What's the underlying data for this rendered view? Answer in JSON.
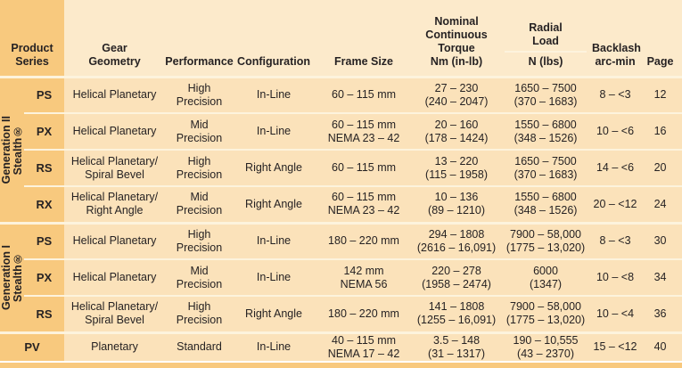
{
  "table": {
    "headers": {
      "product_series": "Product\nSeries",
      "gear_geometry": "Gear\nGeometry",
      "performance": "Performance",
      "configuration": "Configuration",
      "frame_size": "Frame Size",
      "torque": "Nominal\nContinuous\nTorque\nNm (in-lb)",
      "radial_load_title": "Radial\nLoad",
      "radial_load_unit": "N (lbs)",
      "backlash": "Backlash\narc-min",
      "page": "Page"
    },
    "groups": [
      {
        "label": "Generation II\nStealth®"
      },
      {
        "label": "Generation I\nStealth®"
      }
    ],
    "rows": [
      {
        "series": "PS",
        "gear_geometry": "Helical Planetary",
        "performance": "High\nPrecision",
        "configuration": "In-Line",
        "frame_size": "60 – 115 mm",
        "torque": "27 – 230\n(240 – 2047)",
        "radial_load": "1650 – 7500\n(370 – 1683)",
        "backlash": "8 – <3",
        "page": "12"
      },
      {
        "series": "PX",
        "gear_geometry": "Helical Planetary",
        "performance": "Mid\nPrecision",
        "configuration": "In-Line",
        "frame_size": "60 – 115 mm\nNEMA 23 – 42",
        "torque": "20 – 160\n(178 – 1424)",
        "radial_load": "1550 – 6800\n(348 – 1526)",
        "backlash": "10 – <6",
        "page": "16"
      },
      {
        "series": "RS",
        "gear_geometry": "Helical Planetary/\nSpiral Bevel",
        "performance": "High\nPrecision",
        "configuration": "Right Angle",
        "frame_size": "60 – 115 mm",
        "torque": "13 – 220\n(115 – 1958)",
        "radial_load": "1650 – 7500\n(370 – 1683)",
        "backlash": "14 – <6",
        "page": "20"
      },
      {
        "series": "RX",
        "gear_geometry": "Helical Planetary/\nRight Angle",
        "performance": "Mid\nPrecision",
        "configuration": "Right Angle",
        "frame_size": "60 – 115 mm\nNEMA 23 – 42",
        "torque": "10 – 136\n(89 – 1210)",
        "radial_load": "1550 – 6800\n(348 – 1526)",
        "backlash": "20 – <12",
        "page": "24"
      },
      {
        "series": "PS",
        "gear_geometry": "Helical Planetary",
        "performance": "High\nPrecision",
        "configuration": "In-Line",
        "frame_size": "180 – 220 mm",
        "torque": "294 – 1808\n(2616 – 16,091)",
        "radial_load": "7900 – 58,000\n(1775 – 13,020)",
        "backlash": "8 – <3",
        "page": "30"
      },
      {
        "series": "PX",
        "gear_geometry": "Helical Planetary",
        "performance": "Mid\nPrecision",
        "configuration": "In-Line",
        "frame_size": "142 mm\nNEMA 56",
        "torque": "220 – 278\n(1958 – 2474)",
        "radial_load": "6000\n(1347)",
        "backlash": "10 – <8",
        "page": "34"
      },
      {
        "series": "RS",
        "gear_geometry": "Helical Planetary/\nSpiral Bevel",
        "performance": "High\nPrecision",
        "configuration": "Right Angle",
        "frame_size": "180 – 220 mm",
        "torque": "141 – 1808\n(1255 – 16,091)",
        "radial_load": "7900 – 58,000\n(1775 – 13,020)",
        "backlash": "10 – <4",
        "page": "36"
      },
      {
        "series": "PV",
        "gear_geometry": "Planetary",
        "performance": "Standard",
        "configuration": "In-Line",
        "frame_size": "40 – 115 mm\nNEMA 17 – 42",
        "torque": "3.5 – 148\n(31 – 1317)",
        "radial_load": "190 – 10,555\n(43 – 2370)",
        "backlash": "15 – <12",
        "page": "40"
      }
    ]
  },
  "colors": {
    "accent_dark": "#f8c97e",
    "header_cream": "#fceacb",
    "row_peach": "#fbe2ba",
    "separator": "#fdf3dd",
    "text": "#262223"
  }
}
